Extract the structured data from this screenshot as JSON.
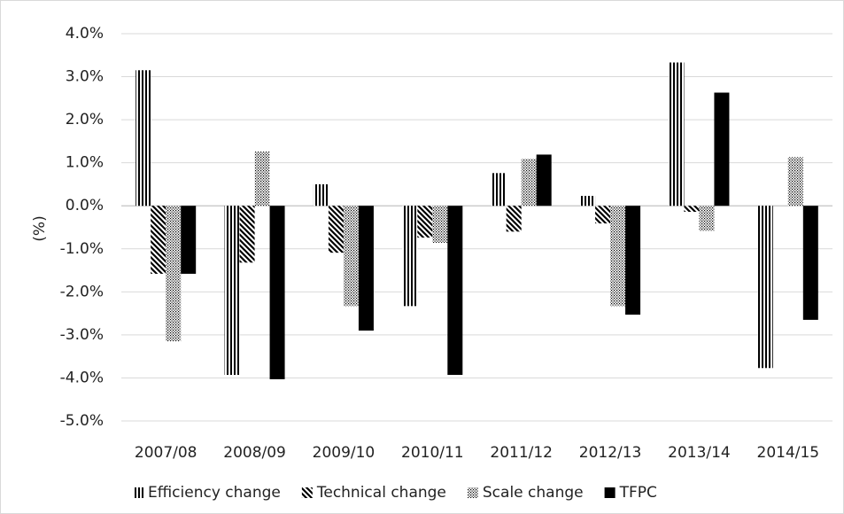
{
  "chart_data": {
    "type": "bar",
    "y_label": "(%)",
    "categories": [
      "2007/08",
      "2008/09",
      "2009/10",
      "2010/11",
      "2011/12",
      "2012/13",
      "2013/14",
      "2014/15"
    ],
    "series": [
      {
        "name": "Efficiency change",
        "color": "#000000",
        "pattern": "vertical",
        "values": [
          3.15,
          -3.93,
          0.5,
          -2.33,
          0.76,
          0.23,
          3.33,
          -3.77
        ]
      },
      {
        "name": "Technical change",
        "color": "#000000",
        "pattern": "diagonal",
        "values": [
          -1.58,
          -1.32,
          -1.09,
          -0.74,
          -0.6,
          -0.41,
          -0.14,
          0
        ]
      },
      {
        "name": "Scale change",
        "color": "#000000",
        "pattern": "dots",
        "values": [
          -3.15,
          1.26,
          -2.33,
          -0.86,
          1.09,
          -2.33,
          -0.58,
          1.13
        ]
      },
      {
        "name": "TFPC",
        "color": "#000000",
        "pattern": "solid",
        "values": [
          -1.58,
          -4.03,
          -2.9,
          -3.93,
          1.19,
          -2.53,
          2.63,
          -2.65
        ]
      }
    ],
    "ylim": [
      -5,
      4
    ],
    "yticks": [
      {
        "value": -5,
        "label": "-5.0%"
      },
      {
        "value": -4,
        "label": "-4.0%"
      },
      {
        "value": -3,
        "label": "-3.0%"
      },
      {
        "value": -2,
        "label": "-2.0%"
      },
      {
        "value": -1,
        "label": "-1.0%"
      },
      {
        "value": 0,
        "label": "0.0%"
      },
      {
        "value": 1,
        "label": "1.0%"
      },
      {
        "value": 2,
        "label": "2.0%"
      },
      {
        "value": 3,
        "label": "3.0%"
      },
      {
        "value": 4,
        "label": "4.0%"
      }
    ],
    "grid": true,
    "legend": "bottom"
  }
}
